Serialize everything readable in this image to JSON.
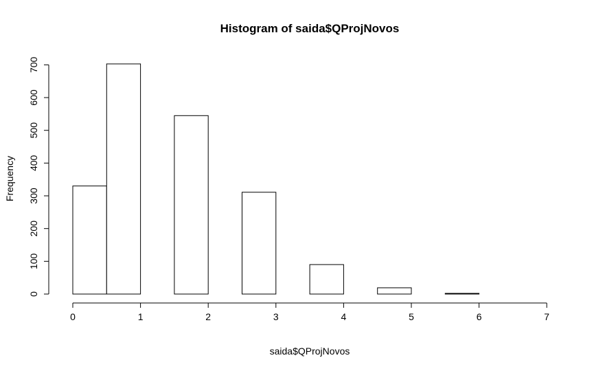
{
  "chart_data": {
    "type": "bar",
    "title": "Histogram of saida$QProjNovos",
    "xlabel": "saida$QProjNovos",
    "ylabel": "Frequency",
    "bins": [
      {
        "start": 0.0,
        "end": 0.5,
        "count": 330
      },
      {
        "start": 0.5,
        "end": 1.0,
        "count": 703
      },
      {
        "start": 1.0,
        "end": 1.5,
        "count": 0
      },
      {
        "start": 1.5,
        "end": 2.0,
        "count": 545
      },
      {
        "start": 2.0,
        "end": 2.5,
        "count": 0
      },
      {
        "start": 2.5,
        "end": 3.0,
        "count": 311
      },
      {
        "start": 3.0,
        "end": 3.5,
        "count": 0
      },
      {
        "start": 3.5,
        "end": 4.0,
        "count": 90
      },
      {
        "start": 4.0,
        "end": 4.5,
        "count": 0
      },
      {
        "start": 4.5,
        "end": 5.0,
        "count": 19
      },
      {
        "start": 5.0,
        "end": 5.5,
        "count": 0
      },
      {
        "start": 5.5,
        "end": 6.0,
        "count": 2
      },
      {
        "start": 6.0,
        "end": 6.5,
        "count": 0
      },
      {
        "start": 6.5,
        "end": 7.0,
        "count": 0
      }
    ],
    "xlim": [
      0,
      7
    ],
    "ylim": [
      0,
      700
    ],
    "xticks": [
      "0",
      "1",
      "2",
      "3",
      "4",
      "5",
      "6",
      "7"
    ],
    "yticks": [
      "0",
      "100",
      "200",
      "300",
      "400",
      "500",
      "600",
      "700"
    ],
    "grid": false,
    "bar_fill": "#ffffff",
    "bar_stroke": "#000000"
  }
}
